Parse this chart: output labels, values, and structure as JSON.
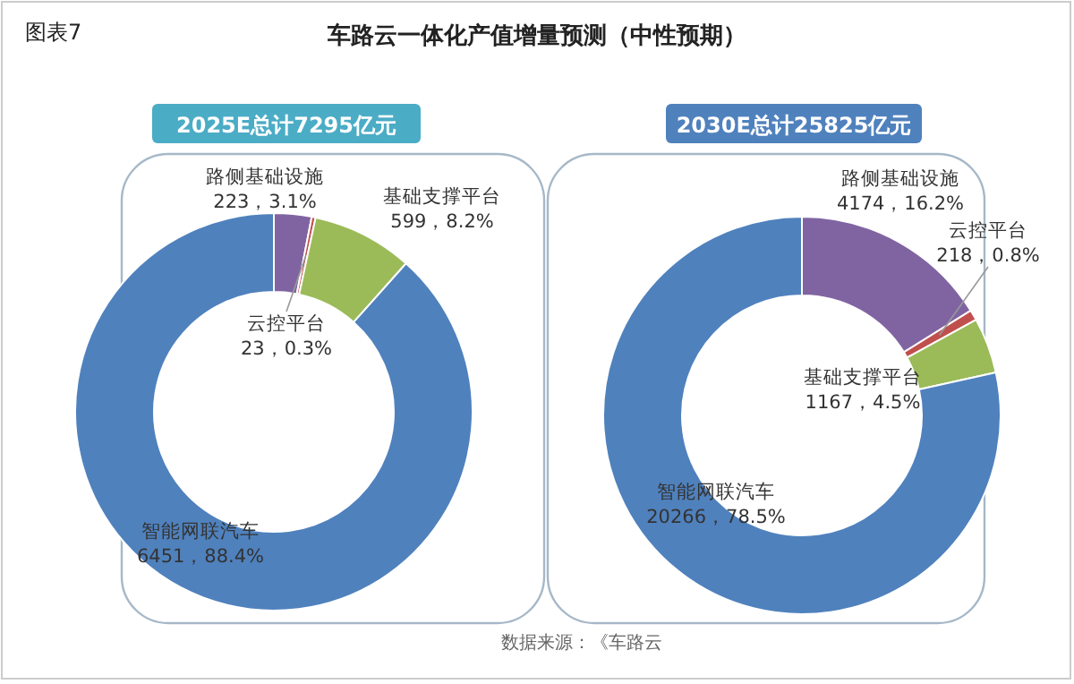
{
  "chart_data": [
    {
      "type": "donut",
      "title": "2025E总计7295亿元",
      "categories": [
        "路侧基础设施",
        "云控平台",
        "基础支撑平台",
        "智能网联汽车"
      ],
      "values": [
        223,
        23,
        599,
        6451
      ],
      "value_labels": [
        "223，3.1%",
        "23，0.3%",
        "599，8.2%",
        "6451，88.4%"
      ],
      "colors": [
        "#8064a2",
        "#c0504d",
        "#9bbb59",
        "#4f81bd"
      ],
      "annotations": [
        "图表7",
        "车路云一体化产值增量预测（中性预期）"
      ]
    },
    {
      "type": "donut",
      "title": "2030E总计25825亿元",
      "categories": [
        "路侧基础设施",
        "云控平台",
        "基础支撑平台",
        "智能网联汽车"
      ],
      "values": [
        4174,
        218,
        1167,
        20266
      ],
      "value_labels": [
        "4174，16.2%",
        "218，0.8%",
        "1167，4.5%",
        "20266，78.5%"
      ],
      "colors": [
        "#8064a2",
        "#c0504d",
        "#9bbb59",
        "#4f81bd"
      ],
      "annotations": [
        "数据来源：《车路云"
      ]
    }
  ]
}
